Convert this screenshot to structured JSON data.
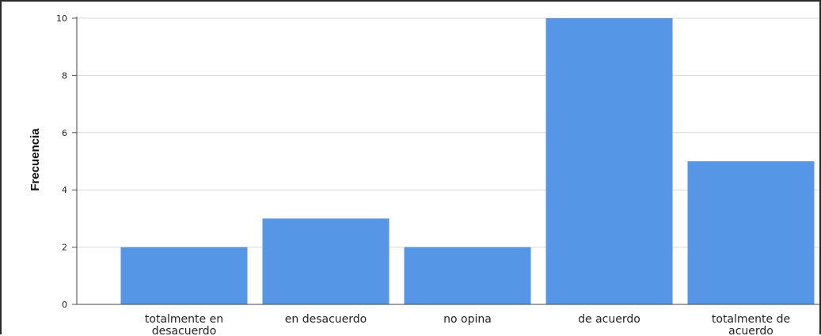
{
  "chart_data": {
    "type": "bar",
    "categories": [
      [
        "totalmente en",
        "desacuerdo"
      ],
      [
        "en desacuerdo"
      ],
      [
        "no opina"
      ],
      [
        "de acuerdo"
      ],
      [
        "totalmente de",
        "acuerdo"
      ]
    ],
    "values": [
      2,
      3,
      2,
      10,
      5
    ],
    "ylabel": "Frecuencia",
    "xlabel": "",
    "title": "",
    "ylim": [
      0,
      10
    ],
    "yticks": [
      "0",
      "2",
      "4",
      "6",
      "8",
      "10"
    ],
    "grid": true,
    "bar_color": "#5596e6",
    "legend": "none"
  }
}
